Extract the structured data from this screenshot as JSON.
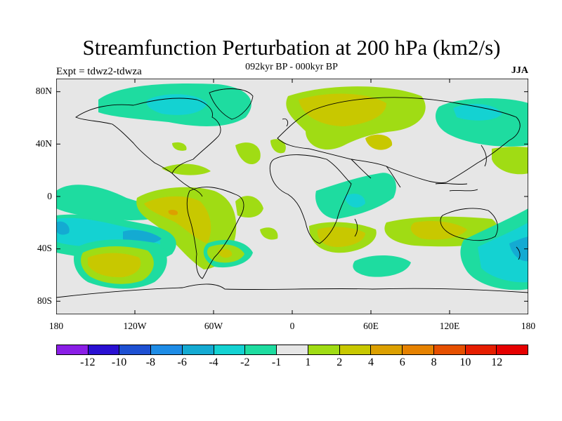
{
  "header": {
    "title": "Streamfunction Perturbation at 200 hPa (km2/s)",
    "subtitle": "092kyr BP - 000kyr BP",
    "experiment": "Expt = tdwz2-tdwza",
    "season": "JJA"
  },
  "map": {
    "type": "contour-map",
    "projection": "cylindrical-equidistant",
    "background_color": "#e6e6e6",
    "lat_ticks": [
      "80N",
      "40N",
      "0",
      "40S",
      "80S"
    ],
    "lon_ticks": [
      "180",
      "120W",
      "60W",
      "0",
      "60E",
      "120E",
      "180"
    ]
  },
  "colorbar": {
    "colors": [
      "#8a1ee6",
      "#2a10d2",
      "#1e50d2",
      "#1e8ce6",
      "#14aad2",
      "#14d2d2",
      "#1edca0",
      "#e6e6e6",
      "#a0dc14",
      "#c8c800",
      "#dca000",
      "#e68200",
      "#e65000",
      "#e61e00",
      "#e60000"
    ],
    "labels": [
      "-12",
      "-10",
      "-8",
      "-6",
      "-4",
      "-2",
      "-1",
      "1",
      "2",
      "4",
      "6",
      "8",
      "10",
      "12"
    ]
  }
}
